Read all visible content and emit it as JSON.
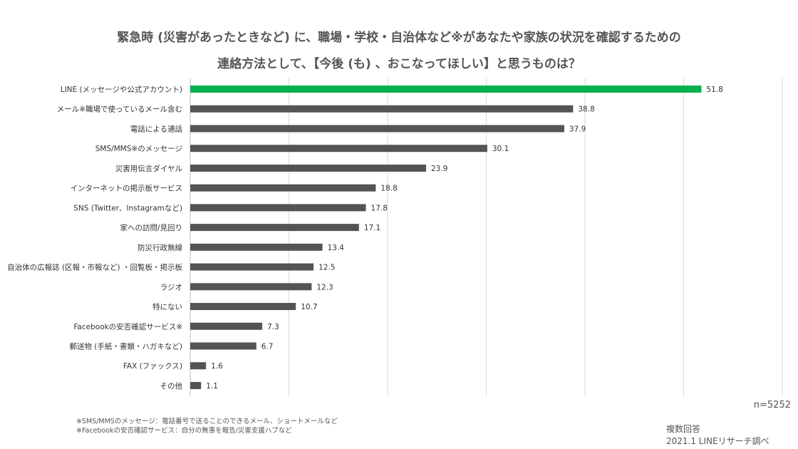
{
  "chart_data": {
    "type": "bar",
    "orientation": "horizontal",
    "title_line1": "緊急時 (災害があったときなど) に、職場・学校・自治体など※があなたや家族の状況を確認するための",
    "title_line2": "連絡方法として、【今後 (も) 、おこなってほしい】と思うものは？",
    "categories": [
      "LINE (メッセージや公式アカウント)",
      "メール※職場で使っているメール含む",
      "電話による通話",
      "SMS/MMS※のメッセージ",
      "災害用伝言ダイヤル",
      "インターネットの掲示板サービス",
      "SNS (Twitter、Instagramなど)",
      "家への訪問/見回り",
      "防災行政無線",
      "自治体の広報誌 (区報・市報など) ・回覧板・掲示板",
      "ラジオ",
      "特にない",
      "Facebookの安否確認サービス※",
      "郵送物 (手紙・書類・ハガキなど)",
      "FAX (ファックス)",
      "その他"
    ],
    "values": [
      51.8,
      38.8,
      37.9,
      30.1,
      23.9,
      18.8,
      17.8,
      17.1,
      13.4,
      12.5,
      12.3,
      10.7,
      7.3,
      6.7,
      1.6,
      1.1
    ],
    "value_labels": [
      "51.8",
      "38.8",
      "37.9",
      "30.1",
      "23.9",
      "18.8",
      "17.8",
      "17.1",
      "13.4",
      "12.5",
      "12.3",
      "10.7",
      "7.3",
      "6.7",
      "1.6",
      "1.1"
    ],
    "xlim": [
      0,
      60
    ],
    "grid": true,
    "highlight_index": 0,
    "colors": {
      "highlight": "#06b14e",
      "bar": "#545454",
      "grid": "#d9d9d9"
    }
  },
  "sample_size": "n=5252",
  "notes": [
    "※SMS/MMSのメッセージ：電話番号で送ることのできるメール、ショートメールなど",
    "※Facebookの安否確認サービス：自分の無事を報告/災害支援ハブなど"
  ],
  "credit": {
    "line1": "複数回答",
    "line2": "2021.1  LINEリサーチ調べ"
  }
}
